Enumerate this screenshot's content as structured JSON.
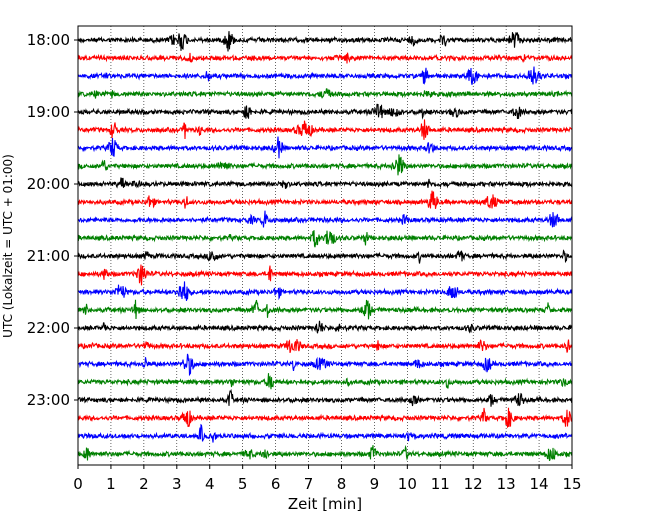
{
  "chart_data": {
    "type": "line",
    "title": "",
    "xlabel": "Zeit  [min]",
    "ylabel": "UTC (Lokalzeit = UTC + 01:00)",
    "xlim": [
      0,
      15
    ],
    "x_ticks": [
      "0",
      "1",
      "2",
      "3",
      "4",
      "5",
      "6",
      "7",
      "8",
      "9",
      "10",
      "11",
      "12",
      "13",
      "14",
      "15"
    ],
    "y_ticks": [
      "18:00",
      "19:00",
      "20:00",
      "21:00",
      "22:00",
      "23:00"
    ],
    "grid": "vertical-dotted",
    "trace_interval_minutes": 15,
    "start_time": "18:00",
    "trace_colors": [
      "#000000",
      "#ff0000",
      "#0000ff",
      "#008000"
    ],
    "traces": [
      {
        "offset_time": "18:00",
        "color": "#000000"
      },
      {
        "offset_time": "18:15",
        "color": "#ff0000"
      },
      {
        "offset_time": "18:30",
        "color": "#0000ff"
      },
      {
        "offset_time": "18:45",
        "color": "#008000"
      },
      {
        "offset_time": "19:00",
        "color": "#000000"
      },
      {
        "offset_time": "19:15",
        "color": "#ff0000"
      },
      {
        "offset_time": "19:30",
        "color": "#0000ff"
      },
      {
        "offset_time": "19:45",
        "color": "#008000"
      },
      {
        "offset_time": "20:00",
        "color": "#000000"
      },
      {
        "offset_time": "20:15",
        "color": "#ff0000"
      },
      {
        "offset_time": "20:30",
        "color": "#0000ff"
      },
      {
        "offset_time": "20:45",
        "color": "#008000"
      },
      {
        "offset_time": "21:00",
        "color": "#000000"
      },
      {
        "offset_time": "21:15",
        "color": "#ff0000"
      },
      {
        "offset_time": "21:30",
        "color": "#0000ff"
      },
      {
        "offset_time": "21:45",
        "color": "#008000"
      },
      {
        "offset_time": "22:00",
        "color": "#000000"
      },
      {
        "offset_time": "22:15",
        "color": "#ff0000"
      },
      {
        "offset_time": "22:30",
        "color": "#0000ff"
      },
      {
        "offset_time": "22:45",
        "color": "#008000"
      },
      {
        "offset_time": "23:00",
        "color": "#000000"
      },
      {
        "offset_time": "23:15",
        "color": "#ff0000"
      },
      {
        "offset_time": "23:30",
        "color": "#0000ff"
      },
      {
        "offset_time": "23:45",
        "color": "#008000"
      }
    ]
  }
}
